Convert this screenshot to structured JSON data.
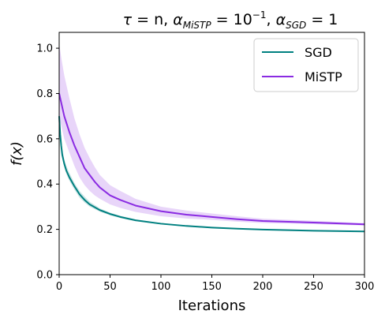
{
  "chart_data": {
    "type": "line",
    "title": "τ = n, α_MiSTP = 10⁻¹, α_SGD = 1",
    "title_parts": {
      "tau": "τ",
      "eq_n": " = n, ",
      "alpha1": "α",
      "sub1": "MiSTP",
      "eq_exp": " = 10",
      "sup": "−1",
      "comma": ", ",
      "alpha2": "α",
      "sub2": "SGD",
      "eq_one": " = 1"
    },
    "xlabel": "Iterations",
    "ylabel": "f(x)",
    "xlim": [
      0,
      300
    ],
    "ylim": [
      0.0,
      1.07
    ],
    "xticks": [
      0,
      50,
      100,
      150,
      200,
      250,
      300
    ],
    "xtick_labels": [
      "0",
      "50",
      "100",
      "150",
      "200",
      "250",
      "300"
    ],
    "yticks": [
      0.0,
      0.2,
      0.4,
      0.6,
      0.8,
      1.0
    ],
    "ytick_labels": [
      "0.0",
      "0.2",
      "0.4",
      "0.6",
      "0.8",
      "1.0"
    ],
    "grid": false,
    "legend_position": "top-right",
    "series": [
      {
        "name": "SGD",
        "color": "#008080",
        "x": [
          0,
          1,
          2,
          3,
          5,
          7,
          10,
          15,
          20,
          25,
          30,
          40,
          50,
          60,
          75,
          100,
          125,
          150,
          175,
          200,
          250,
          300
        ],
        "y": [
          0.7,
          0.62,
          0.57,
          0.53,
          0.49,
          0.46,
          0.43,
          0.39,
          0.355,
          0.33,
          0.31,
          0.285,
          0.268,
          0.255,
          0.24,
          0.225,
          0.215,
          0.208,
          0.203,
          0.199,
          0.194,
          0.191
        ],
        "lower": [
          0.66,
          0.59,
          0.55,
          0.51,
          0.475,
          0.445,
          0.415,
          0.375,
          0.34,
          0.318,
          0.3,
          0.278,
          0.262,
          0.25,
          0.236,
          0.222,
          0.212,
          0.206,
          0.201,
          0.197,
          0.192,
          0.189
        ],
        "upper": [
          0.74,
          0.65,
          0.6,
          0.56,
          0.51,
          0.48,
          0.45,
          0.405,
          0.37,
          0.345,
          0.322,
          0.293,
          0.274,
          0.26,
          0.244,
          0.228,
          0.218,
          0.21,
          0.205,
          0.201,
          0.196,
          0.193
        ]
      },
      {
        "name": "MiSTP",
        "color": "#8a2be2",
        "x": [
          0,
          2,
          5,
          10,
          15,
          20,
          25,
          30,
          35,
          40,
          50,
          60,
          75,
          100,
          125,
          150,
          175,
          200,
          250,
          300
        ],
        "y": [
          0.8,
          0.76,
          0.7,
          0.63,
          0.57,
          0.52,
          0.47,
          0.44,
          0.41,
          0.385,
          0.35,
          0.33,
          0.305,
          0.28,
          0.265,
          0.255,
          0.245,
          0.237,
          0.23,
          0.222
        ],
        "lower": [
          0.69,
          0.66,
          0.6,
          0.54,
          0.48,
          0.43,
          0.395,
          0.37,
          0.35,
          0.335,
          0.31,
          0.295,
          0.277,
          0.258,
          0.248,
          0.242,
          0.234,
          0.228,
          0.223,
          0.217
        ],
        "upper": [
          1.02,
          0.96,
          0.88,
          0.78,
          0.69,
          0.62,
          0.56,
          0.515,
          0.475,
          0.44,
          0.395,
          0.37,
          0.335,
          0.3,
          0.283,
          0.27,
          0.258,
          0.247,
          0.238,
          0.228
        ]
      }
    ]
  }
}
